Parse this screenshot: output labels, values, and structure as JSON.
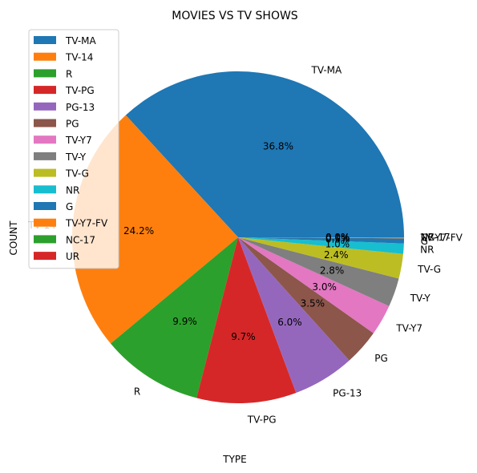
{
  "chart_data": {
    "type": "pie",
    "title": "MOVIES VS TV SHOWS",
    "xlabel": "TYPE",
    "ylabel": "COUNT",
    "legend_position": "upper-left",
    "slices": [
      {
        "label": "TV-MA",
        "value": 36.8,
        "pct": "36.8%",
        "color": "#1f77b4"
      },
      {
        "label": "TV-14",
        "value": 24.2,
        "pct": "24.2%",
        "color": "#ff7f0e"
      },
      {
        "label": "R",
        "value": 9.9,
        "pct": "9.9%",
        "color": "#2ca02c"
      },
      {
        "label": "TV-PG",
        "value": 9.7,
        "pct": "9.7%",
        "color": "#d62728"
      },
      {
        "label": "PG-13",
        "value": 6.0,
        "pct": "6.0%",
        "color": "#9467bd"
      },
      {
        "label": "PG",
        "value": 3.5,
        "pct": "3.5%",
        "color": "#8c564b"
      },
      {
        "label": "TV-Y7",
        "value": 3.0,
        "pct": "3.0%",
        "color": "#e377c2"
      },
      {
        "label": "TV-Y",
        "value": 2.8,
        "pct": "2.8%",
        "color": "#7f7f7f"
      },
      {
        "label": "TV-G",
        "value": 2.4,
        "pct": "2.4%",
        "color": "#bcbd22"
      },
      {
        "label": "NR",
        "value": 1.0,
        "pct": "1.0%",
        "color": "#17becf"
      },
      {
        "label": "G",
        "value": 0.5,
        "pct": "0.5%",
        "color": "#1f77b4"
      },
      {
        "label": "TV-Y7-FV",
        "value": 0.1,
        "pct": "0.1%",
        "color": "#ff7f0e"
      },
      {
        "label": "NC-17",
        "value": 0.0,
        "pct": "0.0%",
        "color": "#2ca02c"
      },
      {
        "label": "UR",
        "value": 0.0,
        "pct": "0.0%",
        "color": "#d62728"
      }
    ]
  }
}
